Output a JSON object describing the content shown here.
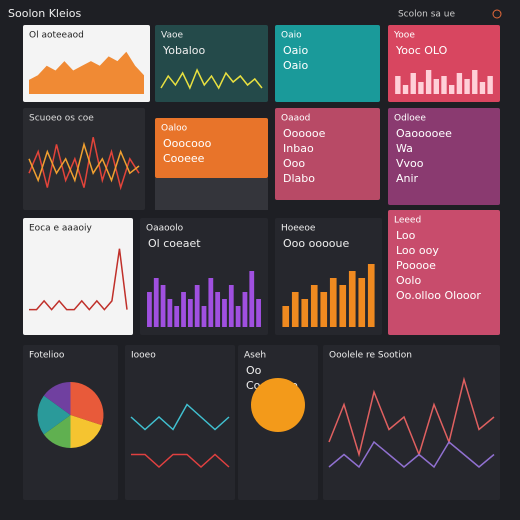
{
  "header": {
    "title": "Soolon Kleios",
    "right": "Scolon sa ue"
  },
  "panels": [
    {
      "title": "Ol aoteeaod",
      "kind": "area",
      "ylim": [
        0,
        10
      ],
      "series": [
        {
          "color": "#f07e1f",
          "values": [
            3,
            4,
            6,
            5,
            7,
            5,
            6,
            7,
            6,
            8,
            7,
            9,
            6,
            4
          ]
        }
      ]
    },
    {
      "title": "Vaoe",
      "lines": [
        "Yobaloo"
      ],
      "kind": "line",
      "ylim": [
        0,
        10
      ],
      "series": [
        {
          "color": "#e8e040",
          "values": [
            2,
            6,
            3,
            7,
            2,
            8,
            3,
            6,
            2,
            7,
            4,
            6,
            3,
            5,
            2
          ]
        }
      ]
    },
    {
      "title": "Oaio",
      "lines": [
        "Oaio",
        "Oaio"
      ],
      "kind": "text"
    },
    {
      "title": "Yooe",
      "lines": [
        "Yooc OLO"
      ],
      "kind": "bars",
      "ylim": [
        0,
        10
      ],
      "series": [
        {
          "color": "#ffd0d8",
          "values": [
            6,
            3,
            7,
            4,
            8,
            5,
            6,
            3,
            7,
            5,
            8,
            4,
            6
          ]
        }
      ]
    },
    {
      "title": "Scuoeo os coe",
      "kind": "multiline",
      "ylim": [
        0,
        10
      ],
      "series": [
        {
          "color": "#e2443a",
          "values": [
            4,
            7,
            2,
            8,
            3,
            6,
            2,
            9,
            3,
            7,
            2,
            6,
            4
          ]
        },
        {
          "color": "#f0a030",
          "values": [
            6,
            3,
            7,
            4,
            6,
            3,
            8,
            4,
            6,
            3,
            7,
            4,
            5
          ]
        }
      ]
    },
    {
      "title": "Oaloo",
      "lines": [
        "Ooocooo",
        "Cooeee"
      ],
      "kind": "text"
    },
    {
      "title": "Oaaod",
      "lines": [
        "Oooooe",
        "Inbao",
        "Ooo",
        "Dlabo"
      ],
      "kind": "text"
    },
    {
      "title": "Odloee",
      "lines": [
        "Oaooooee",
        "Wa",
        "Vvoo",
        "Anir"
      ],
      "kind": "text"
    },
    {
      "title": "Eoca e aaaoiy",
      "kind": "line",
      "ylim": [
        0,
        10
      ],
      "series": [
        {
          "color": "#c0302a",
          "values": [
            2,
            2,
            3,
            2,
            3,
            2,
            2,
            3,
            2,
            3,
            2,
            3,
            9,
            2
          ]
        }
      ]
    },
    {
      "title": "Oaaoolo",
      "lines": [
        "Ol coeaet"
      ],
      "kind": "bars",
      "ylim": [
        0,
        10
      ],
      "series": [
        {
          "color": "#a050e0",
          "values": [
            5,
            7,
            6,
            4,
            3,
            5,
            4,
            6,
            3,
            7,
            5,
            4,
            6,
            3,
            5,
            8,
            4
          ]
        }
      ]
    },
    {
      "title": "Hoeeoe",
      "lines": [
        "Ooo ooooue"
      ],
      "kind": "bars",
      "ylim": [
        0,
        10
      ],
      "series": [
        {
          "color": "#f08a20",
          "values": [
            3,
            5,
            4,
            6,
            5,
            7,
            6,
            8,
            7,
            9
          ]
        }
      ]
    },
    {
      "title": "Leeed",
      "lines": [
        "Loo",
        "Loo ooy",
        "Pooooe",
        "Oolo",
        "Oo.olloo  Olooor"
      ],
      "kind": "text"
    },
    {
      "title": "Fotelioo",
      "kind": "pie",
      "series": [
        {
          "color": "#e85a3a",
          "values": [
            30
          ]
        },
        {
          "color": "#f5c430",
          "values": [
            20
          ]
        },
        {
          "color": "#60b050",
          "values": [
            15
          ]
        },
        {
          "color": "#2a9a9a",
          "values": [
            20
          ]
        },
        {
          "color": "#7040a0",
          "values": [
            15
          ]
        }
      ]
    },
    {
      "title": "Iooeo",
      "kind": "multiline",
      "ylim": [
        0,
        10
      ],
      "series": [
        {
          "color": "#40c0d0",
          "values": [
            6,
            5,
            6,
            5,
            7,
            6,
            5,
            6
          ]
        },
        {
          "color": "#e04040",
          "values": [
            3,
            3,
            2,
            3,
            3,
            2,
            3,
            2
          ]
        }
      ]
    },
    {
      "title": "Aseh",
      "lines": [
        "Oo",
        "Cooo ouo"
      ],
      "kind": "circle"
    },
    {
      "title": "Ooolele re Sootion",
      "kind": "multiline",
      "ylim": [
        0,
        10
      ],
      "series": [
        {
          "color": "#e06060",
          "values": [
            4,
            7,
            3,
            8,
            5,
            6,
            3,
            7,
            4,
            9,
            5,
            6
          ]
        },
        {
          "color": "#9070d0",
          "values": [
            2,
            3,
            2,
            4,
            3,
            2,
            3,
            2,
            4,
            3,
            2,
            3
          ]
        }
      ]
    }
  ]
}
